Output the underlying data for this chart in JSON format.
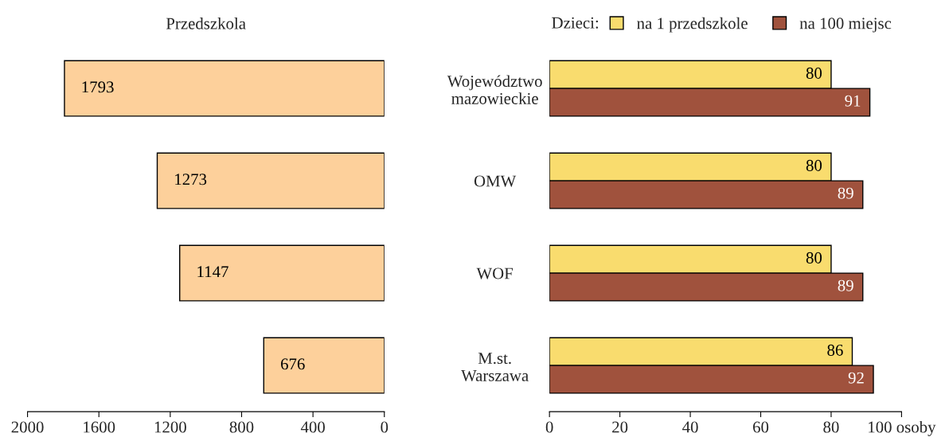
{
  "chart_data": [
    {
      "type": "bar",
      "orientation": "horizontal",
      "title": "Przedszkola",
      "categories": [
        "Województwo\nmazowieckie",
        "OMW",
        "WOF",
        "M.st.\nWarszawa"
      ],
      "series": [
        {
          "color": "#fdd09b",
          "values": [
            1793,
            1273,
            1147,
            676
          ]
        }
      ],
      "xlim": [
        2000,
        0
      ],
      "xticks": [
        2000,
        1600,
        1200,
        800,
        400,
        0
      ],
      "data_labels": true,
      "grid": false,
      "legend": false
    },
    {
      "type": "bar",
      "orientation": "horizontal",
      "legend_title": "Dzieci:",
      "series": [
        {
          "name": "na 1 przedszkole",
          "color": "#f9dc6e",
          "values": [
            80,
            80,
            80,
            86
          ]
        },
        {
          "name": "na 100 miejsc",
          "color": "#a0523d",
          "values": [
            91,
            89,
            89,
            92
          ]
        }
      ],
      "xlim": [
        0,
        100
      ],
      "xticks": [
        0,
        20,
        40,
        60,
        80,
        {
          "value": 100,
          "label": "100 osoby"
        }
      ],
      "data_labels": true,
      "grid": false,
      "legend": "top",
      "tick_labels": "x"
    }
  ]
}
